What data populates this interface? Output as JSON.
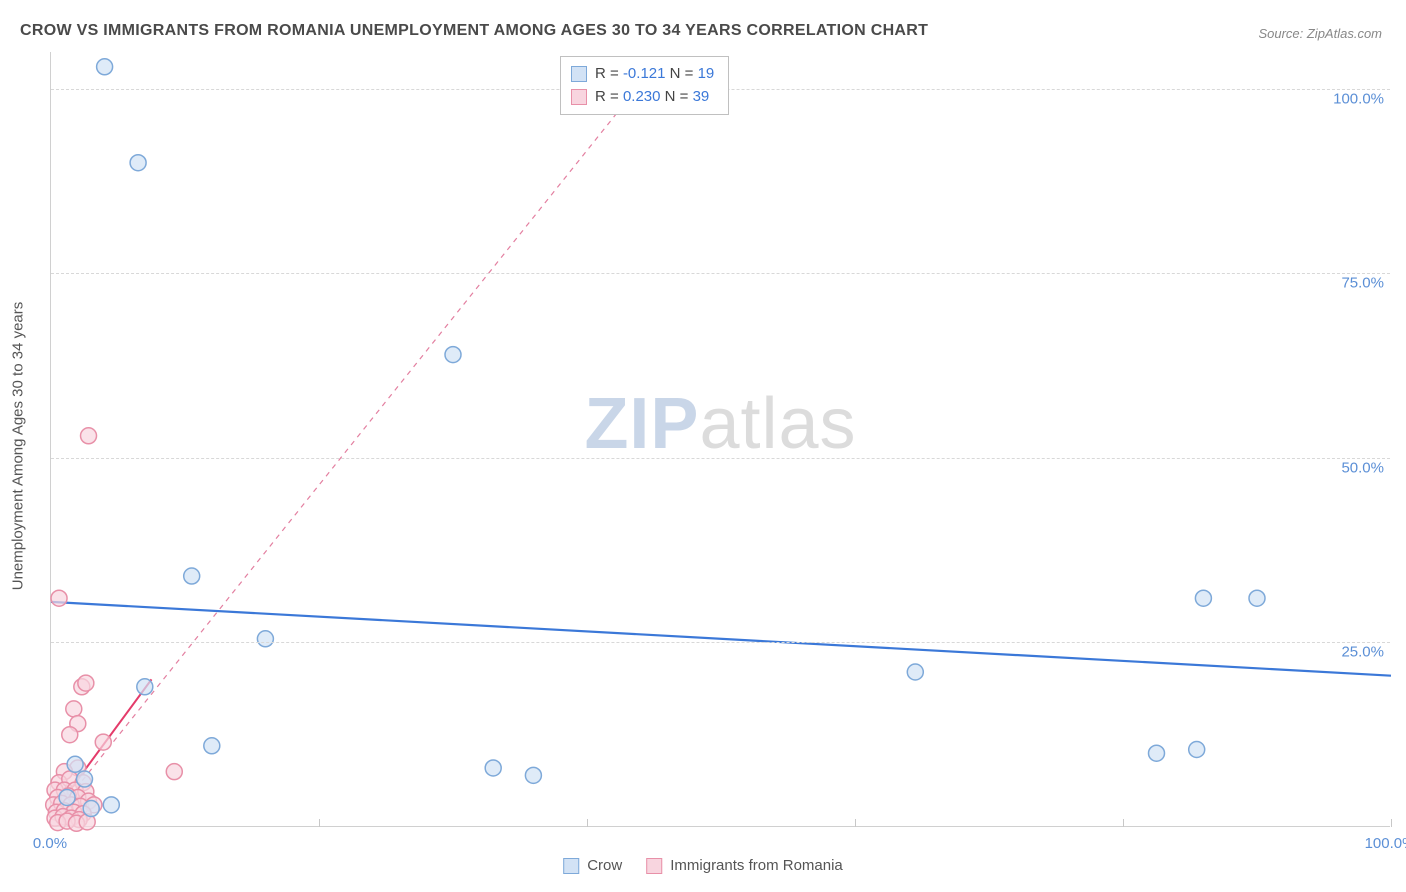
{
  "title": "CROW VS IMMIGRANTS FROM ROMANIA UNEMPLOYMENT AMONG AGES 30 TO 34 YEARS CORRELATION CHART",
  "source": "Source: ZipAtlas.com",
  "watermark_bold": "ZIP",
  "watermark_light": "atlas",
  "y_axis_title": "Unemployment Among Ages 30 to 34 years",
  "chart": {
    "type": "scatter",
    "background_color": "#ffffff",
    "grid_color": "#d8d8d8",
    "xlim": [
      0,
      100
    ],
    "ylim": [
      0,
      105
    ],
    "xtick_labels": [
      "0.0%",
      "100.0%"
    ],
    "xtick_positions": [
      0,
      100
    ],
    "ytick_labels": [
      "25.0%",
      "50.0%",
      "75.0%",
      "100.0%"
    ],
    "ytick_positions": [
      25,
      50,
      75,
      100
    ],
    "vgrid_positions": [
      20,
      40,
      60,
      80,
      100
    ],
    "marker_radius": 8,
    "marker_stroke_width": 1.5,
    "series": [
      {
        "name": "Crow",
        "color_fill": "#d2e2f5",
        "color_stroke": "#7ea9d9",
        "r_value": "-0.121",
        "n_value": "19",
        "trend": {
          "x1": 0,
          "y1": 30.5,
          "x2": 100,
          "y2": 20.5,
          "color": "#3b78d8",
          "width": 2.2,
          "dash": "none"
        },
        "points": [
          {
            "x": 4.0,
            "y": 103.0
          },
          {
            "x": 6.5,
            "y": 90.0
          },
          {
            "x": 30.0,
            "y": 64.0
          },
          {
            "x": 7.0,
            "y": 19.0
          },
          {
            "x": 10.5,
            "y": 34.0
          },
          {
            "x": 16.0,
            "y": 25.5
          },
          {
            "x": 12.0,
            "y": 11.0
          },
          {
            "x": 33.0,
            "y": 8.0
          },
          {
            "x": 36.0,
            "y": 7.0
          },
          {
            "x": 64.5,
            "y": 21.0
          },
          {
            "x": 82.5,
            "y": 10.0
          },
          {
            "x": 85.5,
            "y": 10.5
          },
          {
            "x": 86.0,
            "y": 31.0
          },
          {
            "x": 90.0,
            "y": 31.0
          },
          {
            "x": 2.5,
            "y": 6.5
          },
          {
            "x": 1.2,
            "y": 4.0
          },
          {
            "x": 3.0,
            "y": 2.5
          },
          {
            "x": 1.8,
            "y": 8.5
          },
          {
            "x": 4.5,
            "y": 3.0
          }
        ]
      },
      {
        "name": "Immigrants from Romania",
        "color_fill": "#f8d5df",
        "color_stroke": "#e890a8",
        "r_value": "0.230",
        "n_value": "39",
        "trend": {
          "x1": 0,
          "y1": 1.0,
          "x2": 45,
          "y2": 103,
          "color": "#e37fa0",
          "width": 1.2,
          "dash": "5,5"
        },
        "trend_solid": {
          "x1": 0.2,
          "y1": 2.0,
          "x2": 7.5,
          "y2": 20.0,
          "color": "#e43b6a",
          "width": 2.0
        },
        "points": [
          {
            "x": 2.8,
            "y": 53.0
          },
          {
            "x": 0.6,
            "y": 31.0
          },
          {
            "x": 2.3,
            "y": 19.0
          },
          {
            "x": 2.6,
            "y": 19.5
          },
          {
            "x": 1.7,
            "y": 16.0
          },
          {
            "x": 2.0,
            "y": 14.0
          },
          {
            "x": 1.4,
            "y": 12.5
          },
          {
            "x": 3.9,
            "y": 11.5
          },
          {
            "x": 9.2,
            "y": 7.5
          },
          {
            "x": 2.0,
            "y": 8.0
          },
          {
            "x": 1.0,
            "y": 7.5
          },
          {
            "x": 0.6,
            "y": 6.0
          },
          {
            "x": 1.4,
            "y": 6.5
          },
          {
            "x": 2.4,
            "y": 6.0
          },
          {
            "x": 0.3,
            "y": 5.0
          },
          {
            "x": 1.0,
            "y": 5.0
          },
          {
            "x": 1.8,
            "y": 5.0
          },
          {
            "x": 2.6,
            "y": 4.8
          },
          {
            "x": 0.5,
            "y": 4.0
          },
          {
            "x": 1.3,
            "y": 4.2
          },
          {
            "x": 2.0,
            "y": 4.0
          },
          {
            "x": 2.8,
            "y": 3.5
          },
          {
            "x": 0.2,
            "y": 3.0
          },
          {
            "x": 0.8,
            "y": 3.2
          },
          {
            "x": 1.5,
            "y": 3.0
          },
          {
            "x": 2.2,
            "y": 2.8
          },
          {
            "x": 3.2,
            "y": 3.0
          },
          {
            "x": 0.4,
            "y": 2.0
          },
          {
            "x": 1.0,
            "y": 2.2
          },
          {
            "x": 1.7,
            "y": 2.0
          },
          {
            "x": 2.4,
            "y": 1.8
          },
          {
            "x": 0.3,
            "y": 1.2
          },
          {
            "x": 0.9,
            "y": 1.4
          },
          {
            "x": 1.5,
            "y": 1.2
          },
          {
            "x": 2.1,
            "y": 1.0
          },
          {
            "x": 0.5,
            "y": 0.6
          },
          {
            "x": 1.2,
            "y": 0.8
          },
          {
            "x": 1.9,
            "y": 0.5
          },
          {
            "x": 2.7,
            "y": 0.7
          }
        ]
      }
    ]
  },
  "legend_top": {
    "rows": [
      {
        "swatch_fill": "#d2e2f5",
        "swatch_stroke": "#7ea9d9",
        "r_label": "R = ",
        "r_val": "-0.121",
        "n_label": "   N = ",
        "n_val": "19"
      },
      {
        "swatch_fill": "#f8d5df",
        "swatch_stroke": "#e890a8",
        "r_label": "R = ",
        "r_val": "0.230",
        "n_label": "   N = ",
        "n_val": "39"
      }
    ]
  },
  "legend_bottom": {
    "items": [
      {
        "swatch_fill": "#d2e2f5",
        "swatch_stroke": "#7ea9d9",
        "label": "Crow"
      },
      {
        "swatch_fill": "#f8d5df",
        "swatch_stroke": "#e890a8",
        "label": "Immigrants from Romania"
      }
    ]
  }
}
